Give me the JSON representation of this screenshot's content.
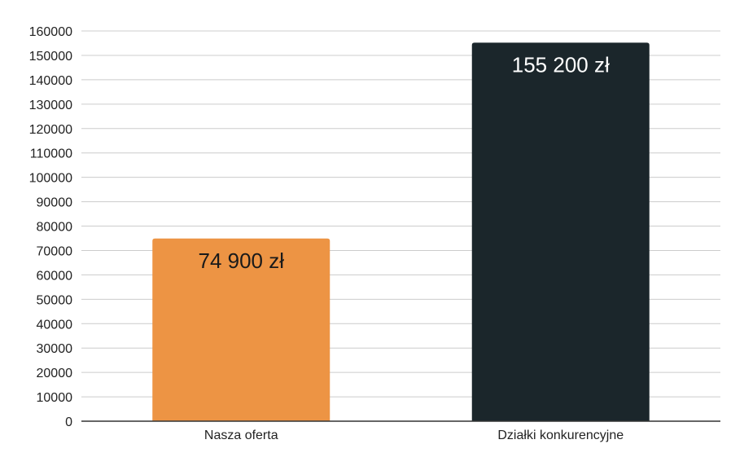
{
  "chart_data": {
    "type": "bar",
    "title": "",
    "xlabel": "",
    "ylabel": "",
    "categories": [
      "Nasza oferta",
      "Działki konkurencyjne"
    ],
    "values": [
      74900,
      155200
    ],
    "data_labels": [
      "74 900 zł",
      "155 200 zł"
    ],
    "bar_colors": [
      "#ED9444",
      "#1B262B"
    ],
    "data_label_colors": [
      "#1a1a1a",
      "#ffffff"
    ],
    "ylim": [
      0,
      160000
    ],
    "y_ticks": [
      0,
      10000,
      20000,
      30000,
      40000,
      50000,
      60000,
      70000,
      80000,
      90000,
      100000,
      110000,
      120000,
      130000,
      140000,
      150000,
      160000
    ],
    "y_tick_labels": [
      "0",
      "10000",
      "20000",
      "30000",
      "40000",
      "50000",
      "60000",
      "70000",
      "80000",
      "90000",
      "100000",
      "110000",
      "120000",
      "130000",
      "140000",
      "150000",
      "160000"
    ],
    "grid": true,
    "legend": "none"
  }
}
